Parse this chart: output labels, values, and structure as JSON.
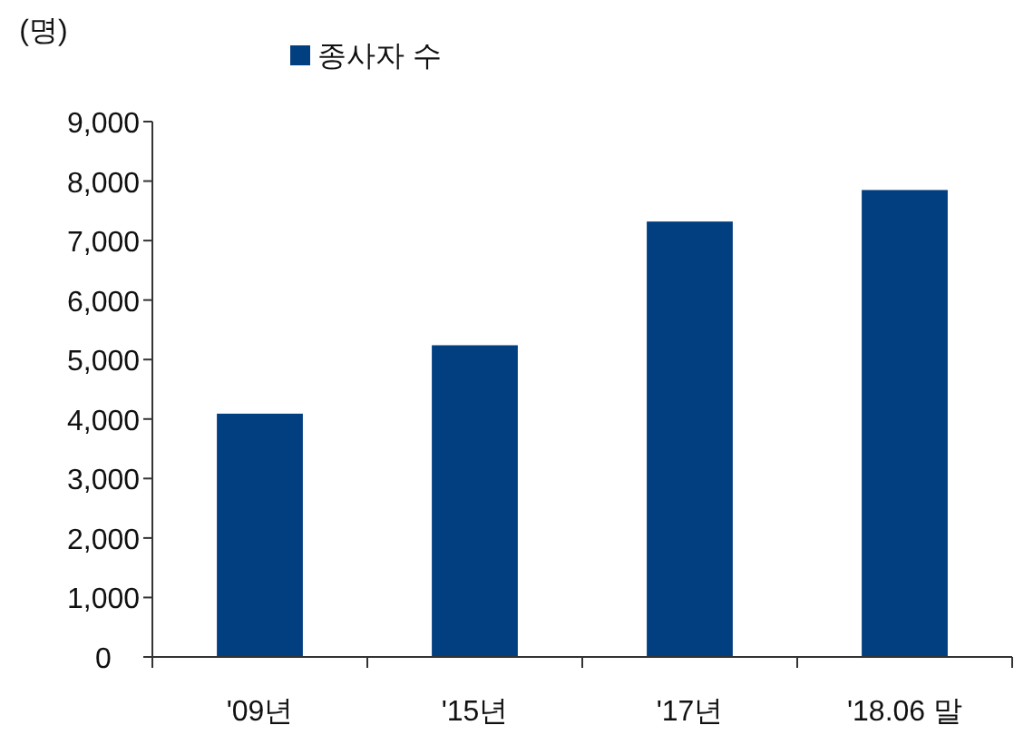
{
  "chart_data": {
    "type": "bar",
    "ylabel": "(명)",
    "categories": [
      "'09년",
      "'15년",
      "'17년",
      "'18.06 말"
    ],
    "series": [
      {
        "name": "종사자 수",
        "color": "#023f80",
        "values": [
          4090,
          5240,
          7320,
          7850
        ]
      }
    ],
    "ylim": [
      0,
      9000
    ],
    "yticks": [
      {
        "value": 0,
        "label": "0"
      },
      {
        "value": 1000,
        "label": "1,000"
      },
      {
        "value": 2000,
        "label": "2,000"
      },
      {
        "value": 3000,
        "label": "3,000"
      },
      {
        "value": 4000,
        "label": "4,000"
      },
      {
        "value": 5000,
        "label": "5,000"
      },
      {
        "value": 6000,
        "label": "6,000"
      },
      {
        "value": 7000,
        "label": "7,000"
      },
      {
        "value": 8000,
        "label": "8,000"
      },
      {
        "value": 9000,
        "label": "9,000"
      }
    ],
    "legend": "top",
    "grid": false
  }
}
